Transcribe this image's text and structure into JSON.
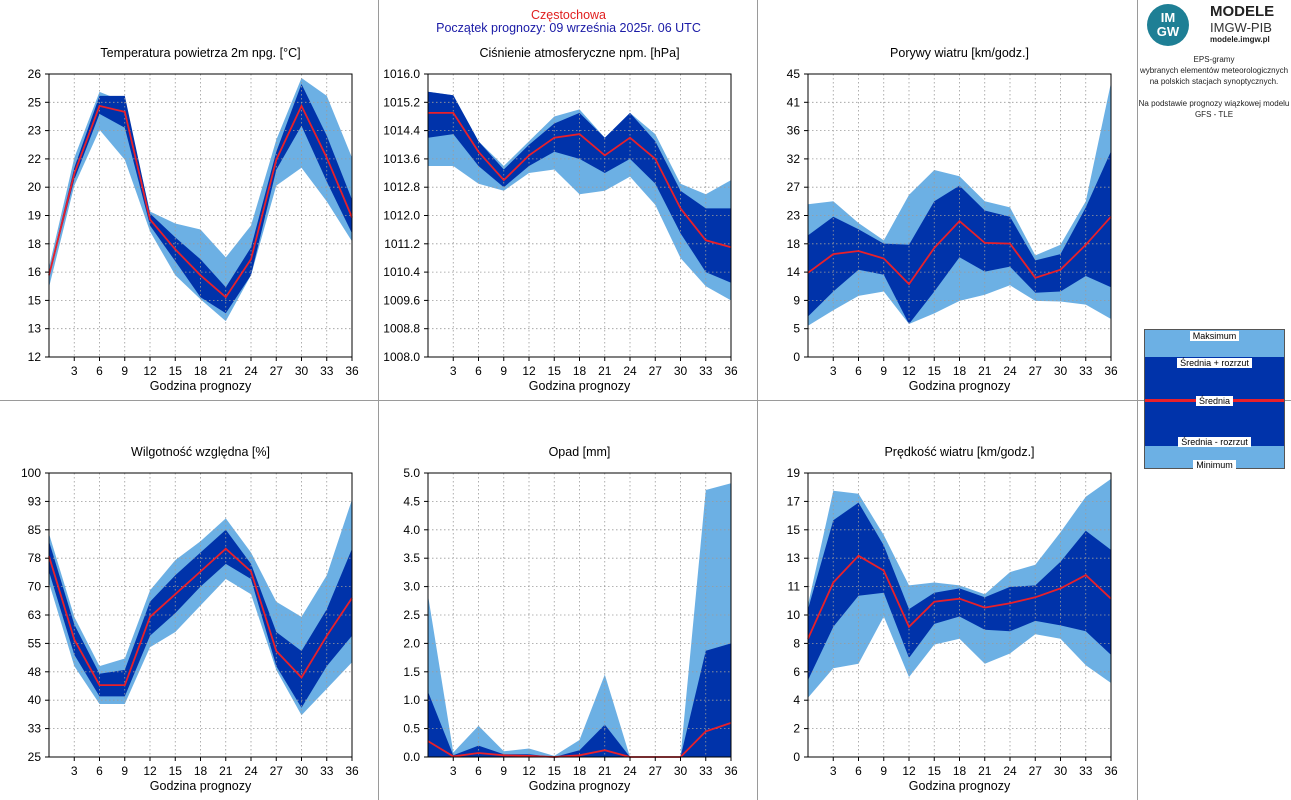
{
  "header": {
    "station": "Częstochowa",
    "forecast_start": "Początek prognozy: 09 września 2025r. 06 UTC"
  },
  "logo": {
    "badge_top": "IM",
    "badge_bottom": "GW",
    "title": "MODELE",
    "subtitle": "IMGW-PIB",
    "site": "modele.imgw.pl"
  },
  "description": {
    "lines": [
      "EPS-gramy",
      "wybranych elementów meteorologicznych",
      "na polskich stacjach  synoptycznych."
    ],
    "basis_lines": [
      "Na podstawie prognozy wiązkowej modelu",
      "GFS - TLE"
    ]
  },
  "legend": {
    "max": "Maksimum",
    "mean_plus": "Średnia + rozrzut",
    "mean": "Średnia",
    "mean_minus": "Średnia - rozrzut",
    "min": "Minimum"
  },
  "colors": {
    "range": "#6cb0e4",
    "spread": "#0033aa",
    "mean": "#e8202a",
    "grid": "#9a9a9a"
  },
  "chart_data": [
    {
      "type": "area",
      "title": "Temperatura powietrza 2m npg. [°C]",
      "xlabel": "Godzina prognozy",
      "x": [
        0,
        3,
        6,
        9,
        12,
        15,
        18,
        21,
        24,
        27,
        30,
        33,
        36
      ],
      "xticks": [
        "3",
        "6",
        "9",
        "12",
        "15",
        "18",
        "21",
        "24",
        "27",
        "30",
        "33",
        "36"
      ],
      "yticks": [
        "12",
        "13",
        "15",
        "16",
        "18",
        "19",
        "20",
        "22",
        "23",
        "25",
        "26"
      ],
      "ylim": [
        12,
        26.2
      ],
      "series": [
        {
          "name": "Maksimum",
          "values": [
            16.5,
            22.0,
            25.3,
            24.8,
            19.3,
            18.7,
            18.4,
            17.0,
            18.6,
            22.9,
            26.0,
            25.1,
            22.0
          ]
        },
        {
          "name": "Średnia + rozrzut",
          "values": [
            16.2,
            21.5,
            25.1,
            25.1,
            19.2,
            18.0,
            16.9,
            15.5,
            17.5,
            22.3,
            25.7,
            23.1,
            19.9
          ]
        },
        {
          "name": "Średnia",
          "values": [
            16.1,
            21.2,
            24.6,
            24.3,
            18.9,
            17.4,
            16.1,
            15.0,
            16.9,
            21.9,
            24.6,
            22.0,
            19.0
          ]
        },
        {
          "name": "Średnia - rozrzut",
          "values": [
            16.0,
            20.9,
            24.2,
            23.5,
            18.6,
            16.8,
            15.0,
            14.2,
            16.1,
            21.4,
            23.6,
            20.8,
            18.2
          ]
        },
        {
          "name": "Minimum",
          "values": [
            15.5,
            20.6,
            23.4,
            21.9,
            18.3,
            16.1,
            14.9,
            13.8,
            16.1,
            20.6,
            21.5,
            19.8,
            17.8
          ]
        }
      ]
    },
    {
      "type": "area",
      "title": "Ciśnienie atmosferyczne npm. [hPa]",
      "xlabel": "Godzina prognozy",
      "x": [
        0,
        3,
        6,
        9,
        12,
        15,
        18,
        21,
        24,
        27,
        30,
        33,
        36
      ],
      "xticks": [
        "3",
        "6",
        "9",
        "12",
        "15",
        "18",
        "21",
        "24",
        "27",
        "30",
        "33",
        "36"
      ],
      "yticks": [
        "1008.0",
        "1008.8",
        "1009.6",
        "1010.4",
        "1011.2",
        "1012.0",
        "1012.8",
        "1013.6",
        "1014.4",
        "1015.2",
        "1016.0"
      ],
      "ylim": [
        1008.0,
        1016.0
      ],
      "series": [
        {
          "name": "Maksimum",
          "values": [
            1015.5,
            1015.4,
            1014.1,
            1013.4,
            1014.1,
            1014.8,
            1015.0,
            1014.2,
            1014.9,
            1014.3,
            1012.9,
            1012.6,
            1013.0
          ]
        },
        {
          "name": "Średnia + rozrzut",
          "values": [
            1015.5,
            1015.4,
            1014.1,
            1013.3,
            1014.0,
            1014.6,
            1014.9,
            1014.2,
            1014.9,
            1014.1,
            1012.7,
            1012.2,
            1012.2
          ]
        },
        {
          "name": "Średnia",
          "values": [
            1014.9,
            1014.9,
            1013.8,
            1013.0,
            1013.7,
            1014.2,
            1014.3,
            1013.7,
            1014.2,
            1013.6,
            1012.2,
            1011.3,
            1011.1
          ]
        },
        {
          "name": "Średnia - rozrzut",
          "values": [
            1014.2,
            1014.3,
            1013.4,
            1012.8,
            1013.4,
            1013.8,
            1013.6,
            1013.2,
            1013.6,
            1012.9,
            1011.5,
            1010.4,
            1010.1
          ]
        },
        {
          "name": "Minimum",
          "values": [
            1013.4,
            1013.4,
            1012.9,
            1012.7,
            1013.2,
            1013.3,
            1012.6,
            1012.7,
            1013.1,
            1012.3,
            1010.8,
            1010.0,
            1009.6
          ]
        }
      ]
    },
    {
      "type": "area",
      "title": "Porywy wiatru [km/godz.]",
      "xlabel": "Godzina prognozy",
      "x": [
        0,
        3,
        6,
        9,
        12,
        15,
        18,
        21,
        24,
        27,
        30,
        33,
        36
      ],
      "xticks": [
        "3",
        "6",
        "9",
        "12",
        "15",
        "18",
        "21",
        "24",
        "27",
        "30",
        "33",
        "36"
      ],
      "yticks": [
        "0",
        "5",
        "9",
        "14",
        "18",
        "23",
        "27",
        "32",
        "36",
        "41",
        "45"
      ],
      "ylim": [
        0,
        45.4
      ],
      "series": [
        {
          "name": "Maksimum",
          "values": [
            24.5,
            25.0,
            21.5,
            18.7,
            26.0,
            30.0,
            29.0,
            25.0,
            24.0,
            16.3,
            18.0,
            25.0,
            44.0
          ]
        },
        {
          "name": "Średnia + rozrzut",
          "values": [
            19.5,
            22.5,
            20.5,
            18.2,
            18.0,
            25.0,
            27.5,
            23.5,
            22.5,
            15.5,
            16.5,
            24.0,
            33.0
          ]
        },
        {
          "name": "Średnia",
          "values": [
            13.5,
            16.5,
            17.0,
            15.8,
            11.7,
            17.5,
            21.8,
            18.3,
            18.2,
            12.7,
            14.0,
            18.0,
            22.5
          ]
        },
        {
          "name": "Średnia - rozrzut",
          "values": [
            6.5,
            10.5,
            14.0,
            13.2,
            5.3,
            10.5,
            16.0,
            13.7,
            14.5,
            10.3,
            10.5,
            13.0,
            11.2
          ]
        },
        {
          "name": "Minimum",
          "values": [
            5.0,
            7.5,
            9.8,
            10.5,
            5.3,
            7.0,
            9.0,
            10.0,
            11.5,
            9.0,
            8.9,
            8.4,
            6.1
          ]
        }
      ]
    },
    {
      "type": "area",
      "title": "Wilgotność względna [%]",
      "xlabel": "Godzina prognozy",
      "x": [
        0,
        3,
        6,
        9,
        12,
        15,
        18,
        21,
        24,
        27,
        30,
        33,
        36
      ],
      "xticks": [
        "3",
        "6",
        "9",
        "12",
        "15",
        "18",
        "21",
        "24",
        "27",
        "30",
        "33",
        "36"
      ],
      "yticks": [
        "25",
        "33",
        "40",
        "48",
        "55",
        "63",
        "70",
        "78",
        "85",
        "93",
        "100"
      ],
      "ylim": [
        25,
        100
      ],
      "series": [
        {
          "name": "Maksimum",
          "values": [
            84,
            62,
            49,
            51,
            69,
            77,
            82,
            88,
            79,
            66,
            62,
            73,
            93
          ]
        },
        {
          "name": "Średnia + rozrzut",
          "values": [
            82,
            60,
            47,
            48,
            66,
            73,
            79,
            85,
            76,
            58,
            53,
            64,
            80
          ]
        },
        {
          "name": "Średnia",
          "values": [
            78,
            56,
            44,
            44,
            62,
            68,
            74,
            80,
            74,
            53,
            46,
            57,
            67
          ]
        },
        {
          "name": "Średnia - rozrzut",
          "values": [
            74,
            52,
            41,
            41,
            57,
            63,
            70,
            76,
            72,
            49,
            38,
            49,
            57
          ]
        },
        {
          "name": "Minimum",
          "values": [
            71,
            49,
            39,
            39,
            54,
            58,
            65,
            72,
            68,
            48,
            36,
            43,
            50
          ]
        }
      ]
    },
    {
      "type": "area",
      "title": "Opad [mm]",
      "xlabel": "Godzina prognozy",
      "x": [
        0,
        3,
        6,
        9,
        12,
        15,
        18,
        21,
        24,
        27,
        30,
        33,
        36
      ],
      "xticks": [
        "3",
        "6",
        "9",
        "12",
        "15",
        "18",
        "21",
        "24",
        "27",
        "30",
        "33",
        "36"
      ],
      "yticks": [
        "0.0",
        "0.5",
        "1.0",
        "1.5",
        "2.0",
        "2.5",
        "3.0",
        "3.5",
        "4.0",
        "4.5",
        "5.0"
      ],
      "ylim": [
        0,
        5.0
      ],
      "series": [
        {
          "name": "Maksimum",
          "values": [
            2.85,
            0.08,
            0.55,
            0.1,
            0.15,
            0.02,
            0.3,
            1.45,
            0.0,
            0.0,
            0.0,
            4.7,
            4.82
          ]
        },
        {
          "name": "Średnia + rozrzut",
          "values": [
            1.15,
            0.03,
            0.2,
            0.05,
            0.05,
            0.0,
            0.12,
            0.57,
            0.0,
            0.0,
            0.0,
            1.87,
            2.0
          ]
        },
        {
          "name": "Średnia",
          "values": [
            0.28,
            0.01,
            0.07,
            0.03,
            0.02,
            0.0,
            0.03,
            0.12,
            0.0,
            0.0,
            0.0,
            0.45,
            0.6
          ]
        },
        {
          "name": "Średnia - rozrzut",
          "values": [
            0,
            0,
            0,
            0,
            0,
            0,
            0,
            0,
            0,
            0,
            0,
            0,
            0
          ]
        },
        {
          "name": "Minimum",
          "values": [
            0,
            0,
            0,
            0,
            0,
            0,
            0,
            0,
            0,
            0,
            0,
            0,
            0
          ]
        }
      ]
    },
    {
      "type": "area",
      "title": "Prędkość wiatru [km/godz.]",
      "xlabel": "Godzina prognozy",
      "x": [
        0,
        3,
        6,
        9,
        12,
        15,
        18,
        21,
        24,
        27,
        30,
        33,
        36
      ],
      "xticks": [
        "3",
        "6",
        "9",
        "12",
        "15",
        "18",
        "21",
        "24",
        "27",
        "30",
        "33",
        "36"
      ],
      "yticks": [
        "0",
        "2",
        "4",
        "6",
        "8",
        "10",
        "11",
        "13",
        "15",
        "17",
        "19"
      ],
      "ylim": [
        0,
        19.2
      ],
      "series": [
        {
          "name": "Maksimum",
          "values": [
            10.3,
            18.0,
            17.8,
            15.0,
            11.6,
            11.8,
            11.6,
            11.0,
            12.5,
            13.0,
            15.2,
            17.6,
            18.8
          ]
        },
        {
          "name": "Średnia + rozrzut",
          "values": [
            10.0,
            16.0,
            17.2,
            14.3,
            10.0,
            11.1,
            11.4,
            10.8,
            11.5,
            11.6,
            13.2,
            15.3,
            14.0
          ]
        },
        {
          "name": "Średnia",
          "values": [
            8.0,
            11.8,
            13.6,
            12.6,
            8.8,
            10.5,
            10.7,
            10.1,
            10.4,
            10.8,
            11.4,
            12.3,
            10.7
          ]
        },
        {
          "name": "Średnia - rozrzut",
          "values": [
            5.2,
            8.8,
            10.9,
            11.1,
            6.7,
            9.0,
            9.5,
            8.6,
            8.5,
            9.2,
            8.9,
            8.5,
            6.9
          ]
        },
        {
          "name": "Minimum",
          "values": [
            4.0,
            6.0,
            6.3,
            9.5,
            5.4,
            7.6,
            8.0,
            6.3,
            7.0,
            8.3,
            8.0,
            6.2,
            5.0
          ]
        }
      ]
    }
  ]
}
